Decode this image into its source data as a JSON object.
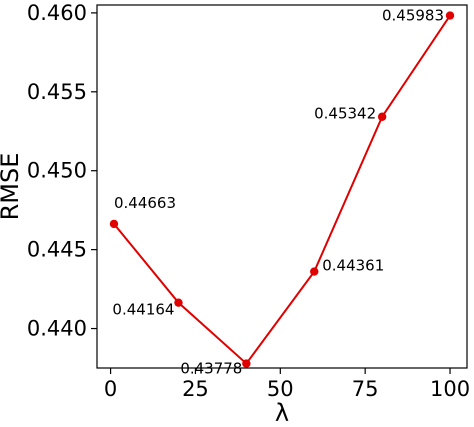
{
  "chart_data": {
    "type": "line",
    "xlabel": "λ",
    "ylabel": "RMSE",
    "xlim": [
      -4,
      105
    ],
    "ylim": [
      0.4375,
      0.4605
    ],
    "xticks": [
      0,
      25,
      50,
      75,
      100
    ],
    "yticks": [
      0.44,
      0.445,
      0.45,
      0.455,
      0.46
    ],
    "xtick_labels": [
      "0",
      "25",
      "50",
      "75",
      "100"
    ],
    "ytick_labels": [
      "0.440",
      "0.445",
      "0.450",
      "0.455",
      "0.460"
    ],
    "grid": false,
    "series": [
      {
        "color": "#e00000",
        "x": [
          1,
          20,
          40,
          60,
          80,
          100
        ],
        "y": [
          0.44663,
          0.44164,
          0.43778,
          0.44361,
          0.45342,
          0.45983
        ],
        "labels": [
          "0.44663",
          "0.44164",
          "0.43778",
          "0.44361",
          "0.45342",
          "0.45983"
        ]
      }
    ]
  }
}
